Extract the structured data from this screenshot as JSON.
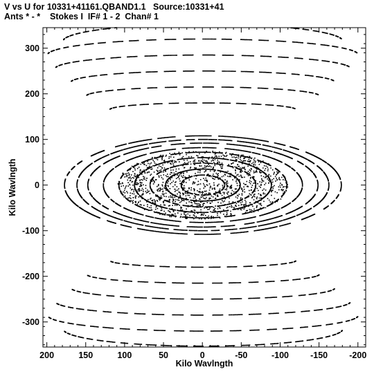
{
  "header": {
    "title_line1": "V vs U for 10331+41161.QBAND1.1   Source:10331+41",
    "title_line2": "Ants * - *    Stokes I  IF# 1 - 2  Chan# 1"
  },
  "chart_data": {
    "type": "scatter",
    "xlabel": "Kilo Wavlngth",
    "ylabel": "Kilo Wavlngth",
    "xlim": [
      205,
      -210
    ],
    "ylim": [
      -355,
      345
    ],
    "x_reversed": true,
    "xticks": [
      200,
      150,
      100,
      50,
      0,
      -50,
      -100,
      -150,
      -200
    ],
    "yticks": [
      300,
      200,
      100,
      0,
      -100,
      -200,
      -300
    ],
    "grid": false,
    "marker_color": "#000000",
    "structure": {
      "inner_ellipse_rings": [
        {
          "a": 28,
          "b": 22
        },
        {
          "a": 48,
          "b": 35
        },
        {
          "a": 68,
          "b": 48
        },
        {
          "a": 88,
          "b": 60
        },
        {
          "a": 108,
          "b": 72
        },
        {
          "a": 128,
          "b": 82
        },
        {
          "a": 148,
          "b": 92
        },
        {
          "a": 162,
          "b": 100
        },
        {
          "a": 178,
          "b": 108
        }
      ],
      "outer_arc_rings": [
        {
          "center": 165,
          "b": 15,
          "a": 120
        },
        {
          "center": 195,
          "b": 20,
          "a": 150
        },
        {
          "center": 225,
          "b": 25,
          "a": 170
        },
        {
          "center": 255,
          "b": 30,
          "a": 190
        },
        {
          "center": 285,
          "b": 35,
          "a": 200
        },
        {
          "center": 315,
          "b": 38,
          "a": 180
        }
      ]
    }
  }
}
